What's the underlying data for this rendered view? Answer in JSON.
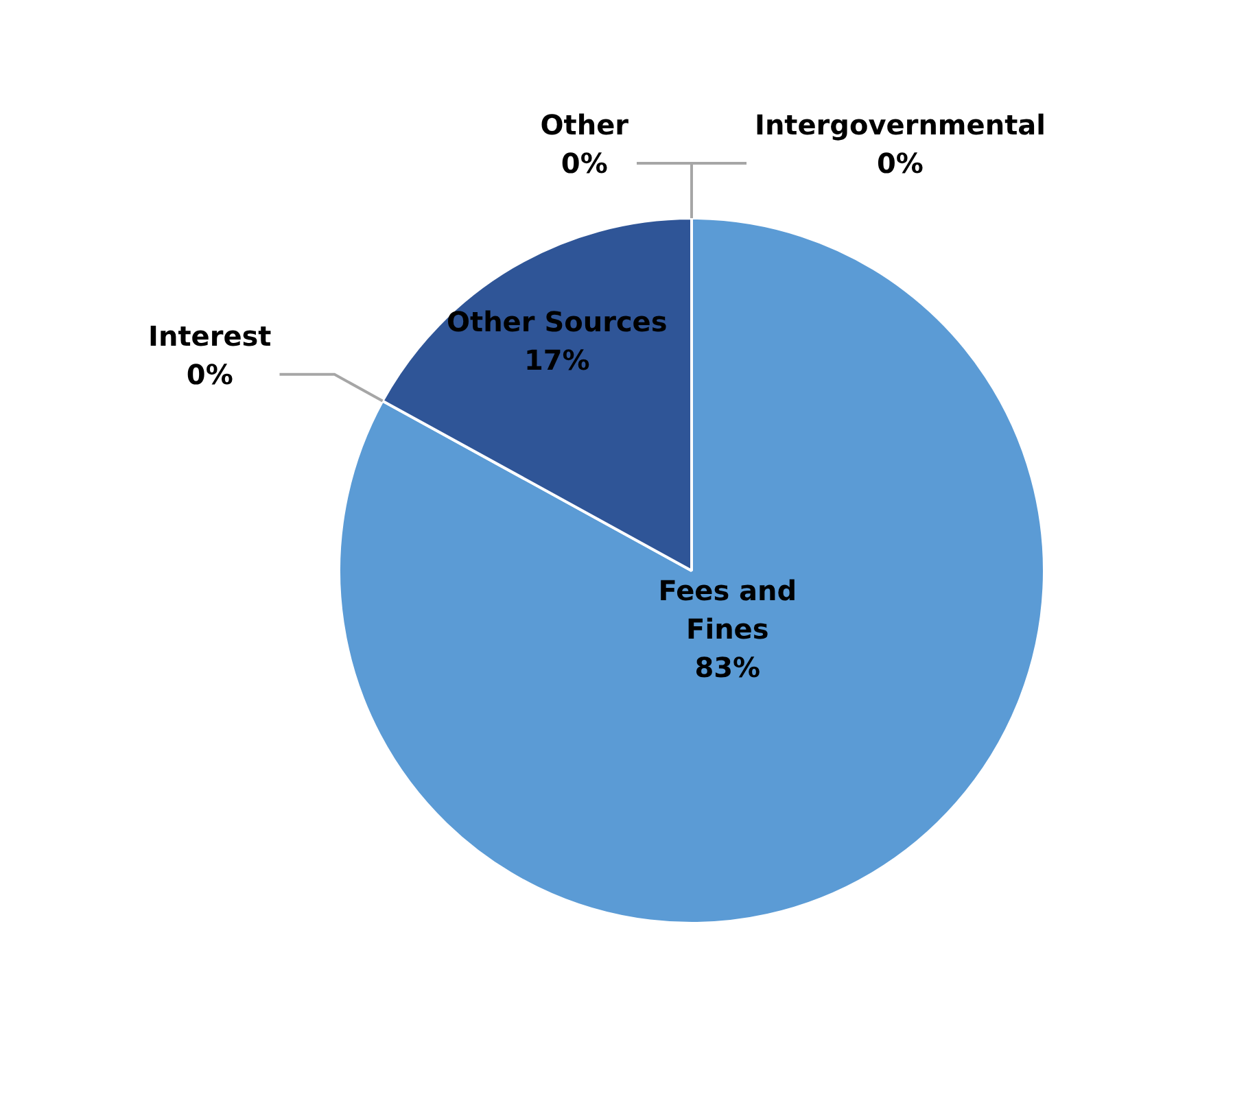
{
  "chart_data": {
    "type": "pie",
    "categories": [
      "Intergovernmental",
      "Fees and Fines",
      "Interest",
      "Other Sources",
      "Other"
    ],
    "values": [
      0,
      83,
      0,
      17,
      0
    ],
    "colors": [
      "#a5a5a5",
      "#5b9bd5",
      "#ed7d31",
      "#2f5597",
      "#70ad47"
    ],
    "value_labels": [
      "0%",
      "83%",
      "0%",
      "17%",
      "0%"
    ],
    "legend": false
  }
}
